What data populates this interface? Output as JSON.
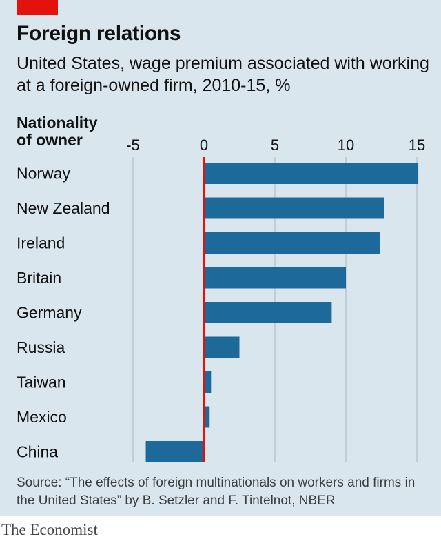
{
  "header": {
    "title": "Foreign relations",
    "subtitle": "United States, wage premium associated with working at a foreign-owned firm, 2010-15, %"
  },
  "chart_data": {
    "type": "bar",
    "orientation": "horizontal",
    "row_header": "Nationality of owner",
    "categories": [
      "Norway",
      "New Zealand",
      "Ireland",
      "Britain",
      "Germany",
      "Russia",
      "Taiwan",
      "Mexico",
      "China"
    ],
    "values": [
      15.1,
      12.7,
      12.4,
      10.0,
      9.0,
      2.5,
      0.5,
      0.4,
      -4.1
    ],
    "xticks": [
      -5,
      0,
      5,
      10,
      15
    ],
    "xtick_labels": [
      "-5",
      "0",
      "5",
      "10",
      "15"
    ],
    "xlim": [
      -5,
      15
    ],
    "grid": true,
    "bar_color": "#1d6a9a",
    "zero_line_color": "#e3120b"
  },
  "footer": {
    "source": "Source: “The effects of foreign multinationals on workers and firms in the United States” by B. Setzler and F. Tintelnot, NBER",
    "brand": "The Economist"
  },
  "colors": {
    "background": "#d9e6ee",
    "accent": "#e3120b",
    "bar": "#1d6a9a"
  }
}
